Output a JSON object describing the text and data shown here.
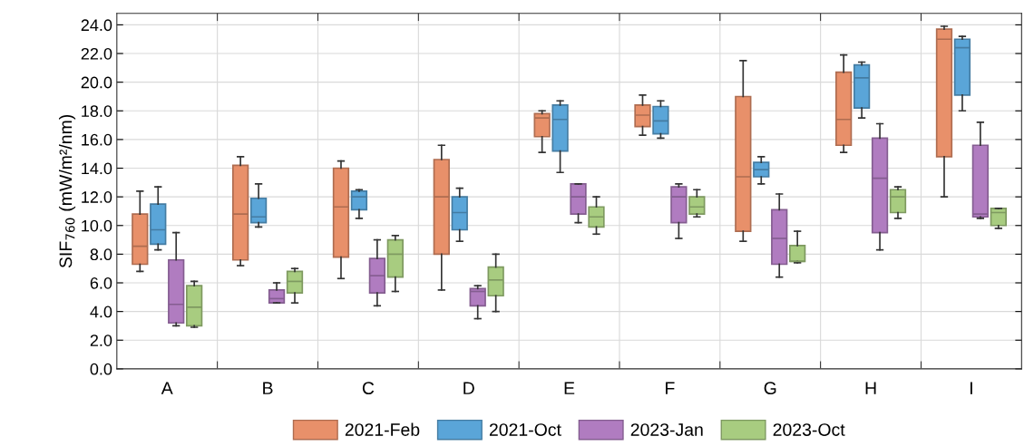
{
  "chart_data": {
    "type": "box",
    "ylabel": "SIF$_{760}$ (mW/m²/nm)",
    "categories": [
      "A",
      "B",
      "C",
      "D",
      "E",
      "F",
      "G",
      "H",
      "I"
    ],
    "ylim": [
      0,
      24.8
    ],
    "yticks": [
      {
        "value": 0,
        "label": "0.0"
      },
      {
        "value": 2,
        "label": "2.0"
      },
      {
        "value": 4,
        "label": "4.0"
      },
      {
        "value": 6,
        "label": "6.0"
      },
      {
        "value": 8,
        "label": "8.0"
      },
      {
        "value": 10,
        "label": "10.0"
      },
      {
        "value": 12,
        "label": "12.0"
      },
      {
        "value": 14,
        "label": "14.0"
      },
      {
        "value": 16,
        "label": "16.0"
      },
      {
        "value": 18,
        "label": "18.0"
      },
      {
        "value": 20,
        "label": "20.0"
      },
      {
        "value": 22,
        "label": "22.0"
      },
      {
        "value": 24,
        "label": "24.0"
      }
    ],
    "grid": true,
    "legend": "bottom",
    "series": [
      {
        "name": "2021-Feb",
        "color": "#e8906a",
        "boxes": [
          {
            "low": 6.8,
            "q1": 7.3,
            "median": 8.55,
            "q3": 10.8,
            "high": 12.4
          },
          {
            "low": 7.2,
            "q1": 7.6,
            "median": 10.8,
            "q3": 14.2,
            "high": 14.8
          },
          {
            "low": 6.3,
            "q1": 7.8,
            "median": 11.3,
            "q3": 14.0,
            "high": 14.5
          },
          {
            "low": 5.5,
            "q1": 8.0,
            "median": 12.0,
            "q3": 14.6,
            "high": 15.6
          },
          {
            "low": 15.1,
            "q1": 16.2,
            "median": 17.5,
            "q3": 17.8,
            "high": 18.0
          },
          {
            "low": 16.3,
            "q1": 16.9,
            "median": 17.7,
            "q3": 18.4,
            "high": 19.1
          },
          {
            "low": 8.9,
            "q1": 9.6,
            "median": 13.4,
            "q3": 19.0,
            "high": 21.5
          },
          {
            "low": 15.1,
            "q1": 15.6,
            "median": 17.4,
            "q3": 20.7,
            "high": 21.9
          },
          {
            "low": 12.0,
            "q1": 14.8,
            "median": 23.0,
            "q3": 23.7,
            "high": 23.9
          }
        ]
      },
      {
        "name": "2021-Oct",
        "color": "#5aa5d8",
        "boxes": [
          {
            "low": 8.3,
            "q1": 8.7,
            "median": 9.7,
            "q3": 11.5,
            "high": 12.7
          },
          {
            "low": 9.9,
            "q1": 10.2,
            "median": 10.6,
            "q3": 11.9,
            "high": 12.9
          },
          {
            "low": 10.5,
            "q1": 11.1,
            "median": 12.0,
            "q3": 12.4,
            "high": 12.5
          },
          {
            "low": 8.9,
            "q1": 9.7,
            "median": 10.9,
            "q3": 12.0,
            "high": 12.6
          },
          {
            "low": 13.7,
            "q1": 15.2,
            "median": 17.4,
            "q3": 18.4,
            "high": 18.7
          },
          {
            "low": 16.1,
            "q1": 16.4,
            "median": 17.3,
            "q3": 18.3,
            "high": 18.7
          },
          {
            "low": 12.9,
            "q1": 13.4,
            "median": 13.9,
            "q3": 14.4,
            "high": 14.8
          },
          {
            "low": 17.5,
            "q1": 18.2,
            "median": 20.3,
            "q3": 21.2,
            "high": 21.4
          },
          {
            "low": 18.0,
            "q1": 19.1,
            "median": 22.4,
            "q3": 23.0,
            "high": 23.2
          }
        ]
      },
      {
        "name": "2023-Jan",
        "color": "#b07cc0",
        "boxes": [
          {
            "low": 3.0,
            "q1": 3.2,
            "median": 4.5,
            "q3": 7.6,
            "high": 9.5
          },
          {
            "low": 4.6,
            "q1": 4.6,
            "median": 4.9,
            "q3": 5.5,
            "high": 6.0
          },
          {
            "low": 4.4,
            "q1": 5.3,
            "median": 6.5,
            "q3": 7.7,
            "high": 9.0
          },
          {
            "low": 3.5,
            "q1": 4.4,
            "median": 5.4,
            "q3": 5.6,
            "high": 5.8
          },
          {
            "low": 10.2,
            "q1": 10.8,
            "median": 12.0,
            "q3": 12.9,
            "high": 12.9
          },
          {
            "low": 9.1,
            "q1": 10.2,
            "median": 12.0,
            "q3": 12.7,
            "high": 12.9
          },
          {
            "low": 6.4,
            "q1": 7.3,
            "median": 9.1,
            "q3": 11.1,
            "high": 12.2
          },
          {
            "low": 8.3,
            "q1": 9.5,
            "median": 13.3,
            "q3": 16.1,
            "high": 17.1
          },
          {
            "low": 10.5,
            "q1": 10.6,
            "median": 10.8,
            "q3": 15.6,
            "high": 17.2
          }
        ]
      },
      {
        "name": "2023-Oct",
        "color": "#a8cc80",
        "boxes": [
          {
            "low": 2.9,
            "q1": 3.0,
            "median": 4.3,
            "q3": 5.8,
            "high": 6.1
          },
          {
            "low": 4.6,
            "q1": 5.3,
            "median": 6.1,
            "q3": 6.8,
            "high": 7.0
          },
          {
            "low": 5.4,
            "q1": 6.4,
            "median": 8.0,
            "q3": 9.0,
            "high": 9.3
          },
          {
            "low": 4.0,
            "q1": 5.1,
            "median": 6.2,
            "q3": 7.1,
            "high": 8.0
          },
          {
            "low": 9.4,
            "q1": 9.9,
            "median": 10.6,
            "q3": 11.3,
            "high": 12.0
          },
          {
            "low": 10.6,
            "q1": 10.8,
            "median": 11.3,
            "q3": 12.0,
            "high": 12.5
          },
          {
            "low": 7.4,
            "q1": 7.5,
            "median": 7.5,
            "q3": 8.6,
            "high": 9.6
          },
          {
            "low": 10.5,
            "q1": 10.9,
            "median": 12.0,
            "q3": 12.5,
            "high": 12.7
          },
          {
            "low": 9.8,
            "q1": 10.0,
            "median": 10.9,
            "q3": 11.2,
            "high": 11.2
          }
        ]
      }
    ]
  }
}
